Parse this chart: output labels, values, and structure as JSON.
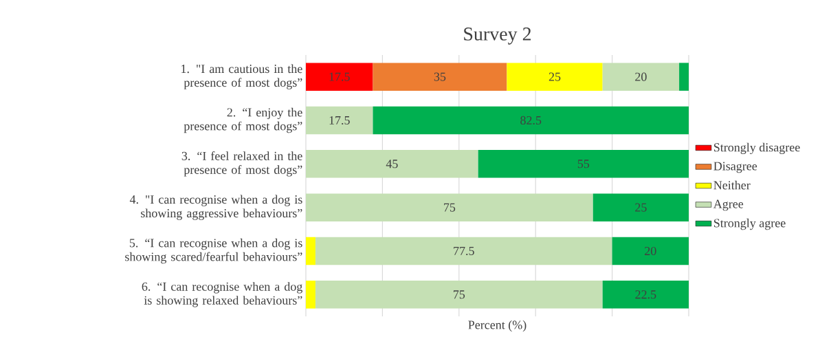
{
  "chart_data": {
    "type": "bar",
    "orientation": "horizontal",
    "stacked": true,
    "title": "Survey 2",
    "xlabel": "Percent (%)",
    "categories": [
      "1. \"I am cautious in the presence of most dogs”",
      "2. “I enjoy the presence of most dogs”",
      "3. “I feel relaxed in the presence of most dogs”",
      "4. \"I can recognise when a dog is showing aggressive behaviours”",
      "5. “I can recognise when a dog is showing scared/fearful behaviours”",
      "6. “I can recognise when a dog is showing relaxed behaviours”"
    ],
    "series": [
      {
        "name": "Strongly disagree",
        "color": "#ff0000",
        "values": [
          17.5,
          null,
          null,
          null,
          null,
          null
        ],
        "value_labels": [
          "17.5",
          null,
          null,
          null,
          null,
          null
        ]
      },
      {
        "name": "Disagree",
        "color": "#ed7d31",
        "values": [
          35,
          null,
          null,
          null,
          null,
          null
        ],
        "value_labels": [
          "35",
          null,
          null,
          null,
          null,
          null
        ]
      },
      {
        "name": "Neither",
        "color": "#ffff00",
        "values": [
          25,
          null,
          null,
          null,
          2.5,
          2.5
        ],
        "value_labels": [
          "25",
          null,
          null,
          null,
          null,
          null
        ]
      },
      {
        "name": "Agree",
        "color": "#c5e0b4",
        "values": [
          20,
          17.5,
          45,
          75,
          77.5,
          75
        ],
        "value_labels": [
          "20",
          "17.5",
          "45",
          "75",
          "77.5",
          "75"
        ]
      },
      {
        "name": "Strongly agree",
        "color": "#00b050",
        "values": [
          2.5,
          82.5,
          55,
          25,
          20,
          22.5
        ],
        "value_labels": [
          null,
          "82.5",
          "55",
          "25",
          "20",
          "22.5"
        ]
      }
    ],
    "xlim": [
      0,
      100
    ],
    "xticks": [
      {
        "value": 0,
        "label": null
      },
      {
        "value": 20,
        "label": null
      },
      {
        "value": 40,
        "label": null
      },
      {
        "value": 60,
        "label": null
      },
      {
        "value": 80,
        "label": null
      },
      {
        "value": 100,
        "label": null
      }
    ],
    "grid": "x",
    "legend": "right",
    "tick_labels": "y"
  }
}
